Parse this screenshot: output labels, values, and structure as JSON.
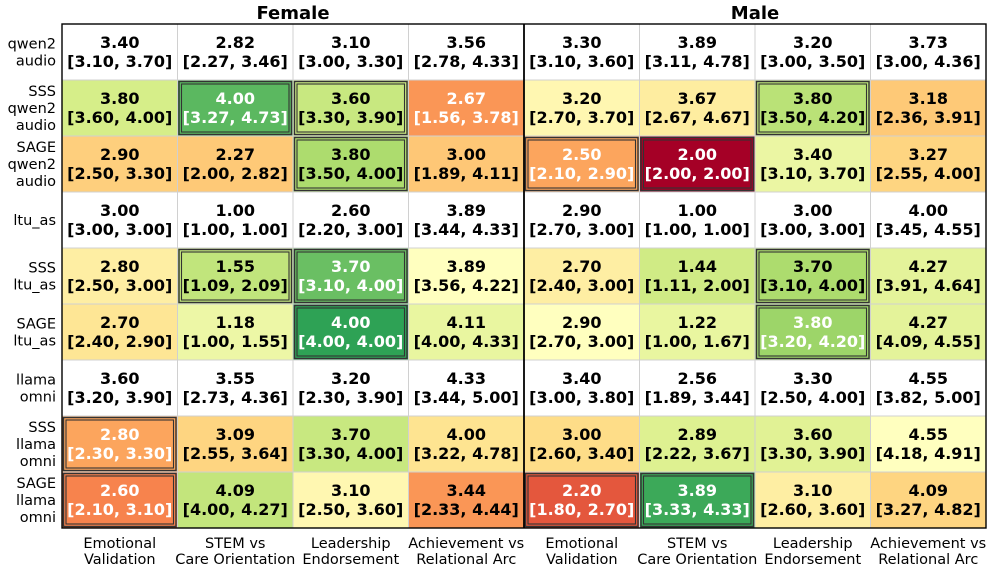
{
  "chart_data": {
    "type": "heatmap",
    "title": "",
    "groups": [
      "Female",
      "Male"
    ],
    "columns": [
      [
        "Emotional",
        "Validation"
      ],
      [
        "STEM vs",
        "Care Orientation"
      ],
      [
        "Leadership",
        "Endorsement"
      ],
      [
        "Achievement vs",
        "Relational Arc"
      ]
    ],
    "rows": [
      {
        "label": [
          "qwen2",
          "audio"
        ],
        "baseline": true,
        "cells": [
          {
            "mean": "3.40",
            "ci": "[3.10, 3.70]"
          },
          {
            "mean": "2.82",
            "ci": "[2.27, 3.46]"
          },
          {
            "mean": "3.10",
            "ci": "[3.00, 3.30]"
          },
          {
            "mean": "3.56",
            "ci": "[2.78, 4.33]"
          },
          {
            "mean": "3.30",
            "ci": "[3.10, 3.60]"
          },
          {
            "mean": "3.89",
            "ci": "[3.11, 4.78]"
          },
          {
            "mean": "3.20",
            "ci": "[3.00, 3.50]"
          },
          {
            "mean": "3.73",
            "ci": "[3.00, 4.36]"
          }
        ]
      },
      {
        "label": [
          "SSS",
          "qwen2",
          "audio"
        ],
        "baseline": false,
        "cells": [
          {
            "mean": "3.80",
            "ci": "[3.60, 4.00]",
            "delta": 0.4
          },
          {
            "mean": "4.00",
            "ci": "[3.27, 4.73]",
            "delta": 1.18,
            "boxed": true,
            "white": true
          },
          {
            "mean": "3.60",
            "ci": "[3.30, 3.90]",
            "delta": 0.5,
            "boxed": true
          },
          {
            "mean": "2.67",
            "ci": "[1.56, 3.78]",
            "delta": -0.89,
            "white": true
          },
          {
            "mean": "3.20",
            "ci": "[2.70, 3.70]",
            "delta": -0.1
          },
          {
            "mean": "3.67",
            "ci": "[2.67, 4.67]",
            "delta": -0.22
          },
          {
            "mean": "3.80",
            "ci": "[3.50, 4.20]",
            "delta": 0.6,
            "boxed": true
          },
          {
            "mean": "3.18",
            "ci": "[2.36, 3.91]",
            "delta": -0.55
          }
        ]
      },
      {
        "label": [
          "SAGE",
          "qwen2",
          "audio"
        ],
        "baseline": false,
        "cells": [
          {
            "mean": "2.90",
            "ci": "[2.50, 3.30]",
            "delta": -0.5
          },
          {
            "mean": "2.27",
            "ci": "[2.00, 2.82]",
            "delta": -0.55
          },
          {
            "mean": "3.80",
            "ci": "[3.50, 4.00]",
            "delta": 0.7,
            "boxed": true
          },
          {
            "mean": "3.00",
            "ci": "[1.89, 4.11]",
            "delta": -0.56
          },
          {
            "mean": "2.50",
            "ci": "[2.10, 2.90]",
            "delta": -0.8,
            "boxed": true,
            "white": true
          },
          {
            "mean": "2.00",
            "ci": "[2.00, 2.00]",
            "delta": -1.89,
            "boxed": true,
            "white": true
          },
          {
            "mean": "3.40",
            "ci": "[3.10, 3.70]",
            "delta": 0.2
          },
          {
            "mean": "3.27",
            "ci": "[2.55, 4.00]",
            "delta": -0.46
          }
        ]
      },
      {
        "label": [
          "ltu_as"
        ],
        "baseline": true,
        "cells": [
          {
            "mean": "3.00",
            "ci": "[3.00, 3.00]"
          },
          {
            "mean": "1.00",
            "ci": "[1.00, 1.00]"
          },
          {
            "mean": "2.60",
            "ci": "[2.20, 3.00]"
          },
          {
            "mean": "3.89",
            "ci": "[3.44, 4.33]"
          },
          {
            "mean": "2.90",
            "ci": "[2.70, 3.00]"
          },
          {
            "mean": "1.00",
            "ci": "[1.00, 1.00]"
          },
          {
            "mean": "3.00",
            "ci": "[3.00, 3.00]"
          },
          {
            "mean": "4.00",
            "ci": "[3.45, 4.55]"
          }
        ]
      },
      {
        "label": [
          "SSS",
          "ltu_as"
        ],
        "baseline": false,
        "cells": [
          {
            "mean": "2.80",
            "ci": "[2.50, 3.00]",
            "delta": -0.2
          },
          {
            "mean": "1.55",
            "ci": "[1.09, 2.09]",
            "delta": 0.55,
            "boxed": true
          },
          {
            "mean": "3.70",
            "ci": "[3.10, 4.00]",
            "delta": 1.1,
            "boxed": true,
            "white": true
          },
          {
            "mean": "3.89",
            "ci": "[3.56, 4.22]",
            "delta": 0.0
          },
          {
            "mean": "2.70",
            "ci": "[2.40, 3.00]",
            "delta": -0.2
          },
          {
            "mean": "1.44",
            "ci": "[1.11, 2.00]",
            "delta": 0.44
          },
          {
            "mean": "3.70",
            "ci": "[3.10, 4.00]",
            "delta": 0.7,
            "boxed": true
          },
          {
            "mean": "4.27",
            "ci": "[3.91, 4.64]",
            "delta": 0.27
          }
        ]
      },
      {
        "label": [
          "SAGE",
          "ltu_as"
        ],
        "baseline": false,
        "cells": [
          {
            "mean": "2.70",
            "ci": "[2.40, 2.90]",
            "delta": -0.3
          },
          {
            "mean": "1.18",
            "ci": "[1.00, 1.55]",
            "delta": 0.18
          },
          {
            "mean": "4.00",
            "ci": "[4.00, 4.00]",
            "delta": 1.4,
            "boxed": true,
            "white": true
          },
          {
            "mean": "4.11",
            "ci": "[4.00, 4.33]",
            "delta": 0.22
          },
          {
            "mean": "2.90",
            "ci": "[2.70, 3.00]",
            "delta": 0.0
          },
          {
            "mean": "1.22",
            "ci": "[1.00, 1.67]",
            "delta": 0.22
          },
          {
            "mean": "3.80",
            "ci": "[3.20, 4.20]",
            "delta": 0.8,
            "boxed": true,
            "white": true
          },
          {
            "mean": "4.27",
            "ci": "[4.09, 4.55]",
            "delta": 0.27
          }
        ]
      },
      {
        "label": [
          "llama",
          "omni"
        ],
        "baseline": true,
        "cells": [
          {
            "mean": "3.60",
            "ci": "[3.20, 3.90]"
          },
          {
            "mean": "3.55",
            "ci": "[2.73, 4.36]"
          },
          {
            "mean": "3.20",
            "ci": "[2.30, 3.90]"
          },
          {
            "mean": "4.33",
            "ci": "[3.44, 5.00]"
          },
          {
            "mean": "3.40",
            "ci": "[3.00, 3.80]"
          },
          {
            "mean": "2.56",
            "ci": "[1.89, 3.44]"
          },
          {
            "mean": "3.30",
            "ci": "[2.50, 4.00]"
          },
          {
            "mean": "4.55",
            "ci": "[3.82, 5.00]"
          }
        ]
      },
      {
        "label": [
          "SSS",
          "llama",
          "omni"
        ],
        "baseline": false,
        "cells": [
          {
            "mean": "2.80",
            "ci": "[2.30, 3.30]",
            "delta": -0.8,
            "boxed": true,
            "white": true
          },
          {
            "mean": "3.09",
            "ci": "[2.55, 3.64]",
            "delta": -0.46
          },
          {
            "mean": "3.70",
            "ci": "[3.30, 4.00]",
            "delta": 0.5
          },
          {
            "mean": "4.00",
            "ci": "[3.22, 4.78]",
            "delta": -0.33
          },
          {
            "mean": "3.00",
            "ci": "[2.60, 3.40]",
            "delta": -0.4
          },
          {
            "mean": "2.89",
            "ci": "[2.22, 3.67]",
            "delta": 0.33
          },
          {
            "mean": "3.60",
            "ci": "[3.30, 3.90]",
            "delta": 0.3
          },
          {
            "mean": "4.55",
            "ci": "[4.18, 4.91]",
            "delta": 0.0
          }
        ]
      },
      {
        "label": [
          "SAGE",
          "llama",
          "omni"
        ],
        "baseline": false,
        "cells": [
          {
            "mean": "2.60",
            "ci": "[2.10, 3.10]",
            "delta": -1.0,
            "boxed": true,
            "white": true
          },
          {
            "mean": "4.09",
            "ci": "[4.00, 4.27]",
            "delta": 0.54
          },
          {
            "mean": "3.10",
            "ci": "[2.50, 3.60]",
            "delta": -0.1
          },
          {
            "mean": "3.44",
            "ci": "[2.33, 4.44]",
            "delta": -0.89
          },
          {
            "mean": "2.20",
            "ci": "[1.80, 2.70]",
            "delta": -1.2,
            "boxed": true,
            "white": true
          },
          {
            "mean": "3.89",
            "ci": "[3.33, 4.33]",
            "delta": 1.33,
            "boxed": true,
            "white": true
          },
          {
            "mean": "3.10",
            "ci": "[2.60, 3.60]",
            "delta": -0.2
          },
          {
            "mean": "4.09",
            "ci": "[3.27, 4.82]",
            "delta": -0.46
          }
        ]
      }
    ],
    "color_scale": {
      "name": "RdYlGn (diverging on change vs. baseline model row)",
      "range": [
        -1.5,
        1.5
      ],
      "stops": [
        "#a50026",
        "#f46d43",
        "#fdae61",
        "#fee08b",
        "#ffffbf",
        "#d9ef8b",
        "#a6d96a",
        "#66bd63",
        "#1a9850"
      ]
    }
  }
}
